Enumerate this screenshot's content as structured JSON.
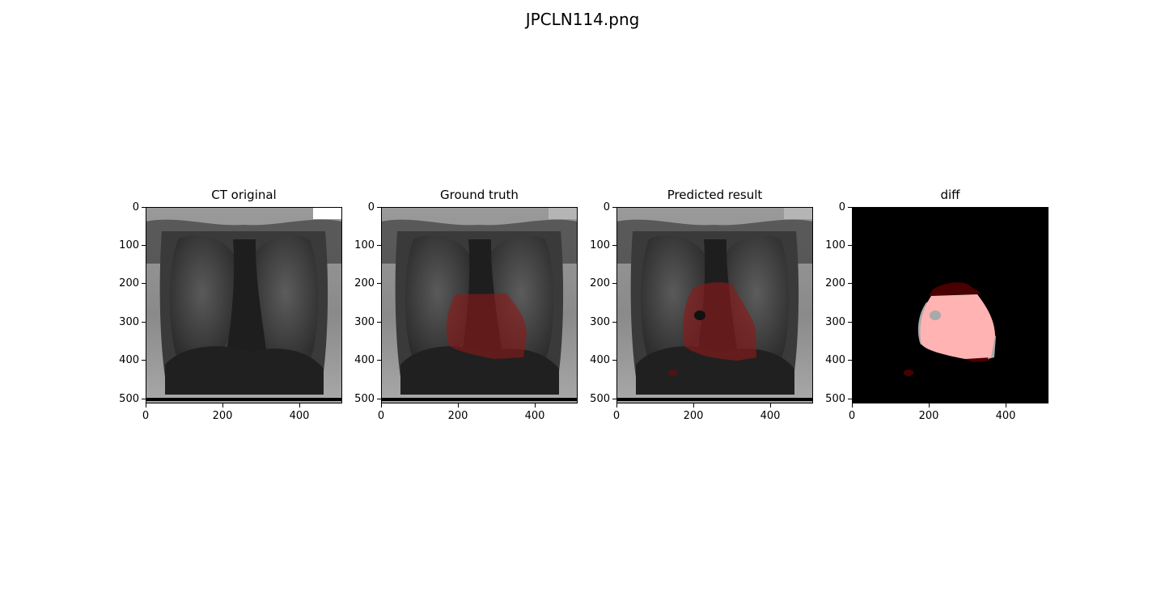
{
  "figure": {
    "title": "JPCLN114.png"
  },
  "panels": [
    {
      "title": "CT original"
    },
    {
      "title": "Ground truth"
    },
    {
      "title": "Predicted result"
    },
    {
      "title": "diff"
    }
  ],
  "axes": {
    "y_ticks": [
      "0",
      "100",
      "200",
      "300",
      "400",
      "500"
    ],
    "x_ticks": [
      "0",
      "200",
      "400"
    ]
  },
  "colors": {
    "overlay_red": "#8b1a1a",
    "diff_pink": "#ffb3b3",
    "diff_gray": "#a9a9a9",
    "diff_dark_red": "#4a0000"
  }
}
